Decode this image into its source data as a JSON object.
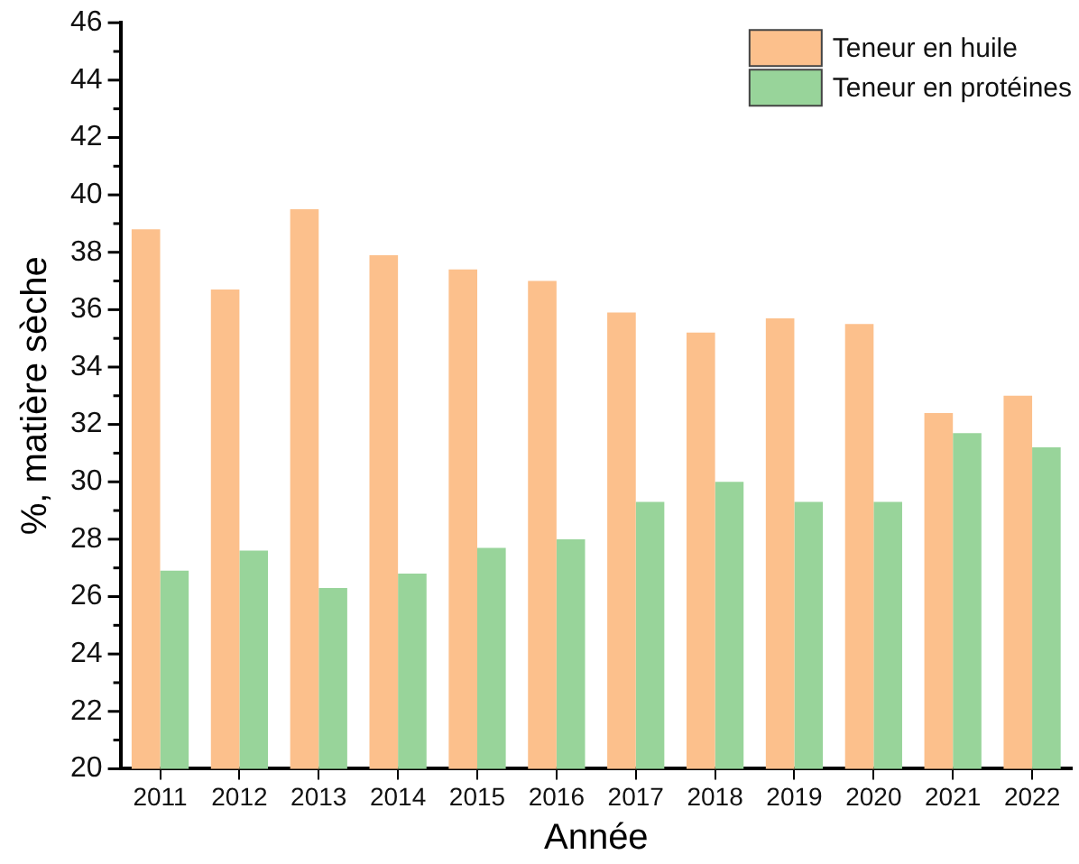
{
  "chart_data": {
    "type": "bar",
    "xlabel": "Année",
    "ylabel": "%, matière sèche",
    "categories": [
      "2011",
      "2012",
      "2013",
      "2014",
      "2015",
      "2016",
      "2017",
      "2018",
      "2019",
      "2020",
      "2021",
      "2022"
    ],
    "series": [
      {
        "name": "Teneur en huile",
        "color": "#fcc08c",
        "values": [
          38.8,
          36.7,
          39.5,
          37.9,
          37.4,
          37.0,
          35.9,
          35.2,
          35.7,
          35.5,
          32.4,
          33.0
        ]
      },
      {
        "name": "Teneur en protéines",
        "color": "#98d49a",
        "values": [
          26.9,
          27.6,
          26.3,
          26.8,
          27.7,
          28.0,
          29.3,
          30.0,
          29.3,
          29.3,
          31.7,
          31.2
        ]
      }
    ],
    "ylim": [
      20,
      46
    ],
    "yticks": [
      20,
      {
        "value": 21,
        "label": null
      },
      22,
      {
        "value": 23,
        "label": null
      },
      24,
      {
        "value": 25,
        "label": null
      },
      26,
      {
        "value": 27,
        "label": null
      },
      28,
      {
        "value": 29,
        "label": null
      },
      30,
      {
        "value": 31,
        "label": null
      },
      32,
      {
        "value": 33,
        "label": null
      },
      34,
      {
        "value": 35,
        "label": null
      },
      36,
      {
        "value": 37,
        "label": null
      },
      38,
      {
        "value": 39,
        "label": null
      },
      40,
      {
        "value": 41,
        "label": null
      },
      42,
      {
        "value": 43,
        "label": null
      },
      44,
      {
        "value": 45,
        "label": null
      },
      46
    ],
    "grid": false,
    "legend": "top right"
  }
}
